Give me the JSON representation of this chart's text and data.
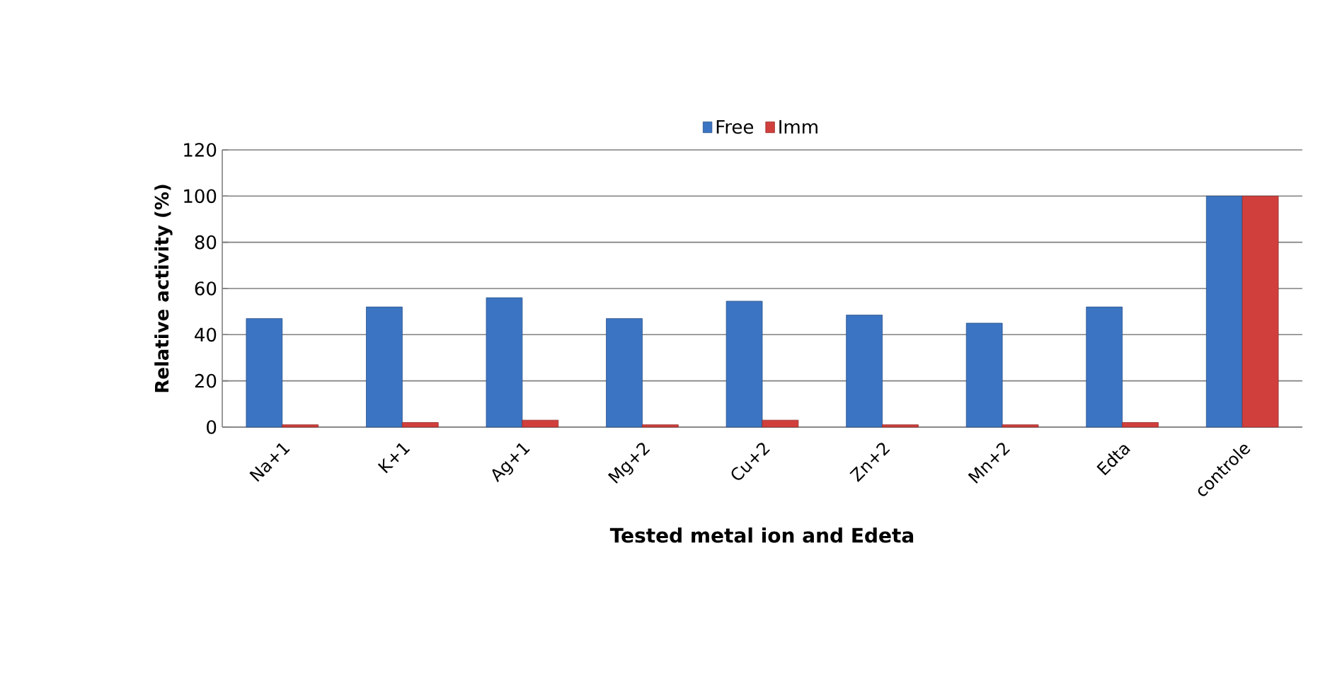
{
  "chart_data": {
    "type": "bar",
    "xlabel": "Tested  metal ion  and Edeta",
    "ylabel": "Relative activity (%)",
    "categories": [
      "Na+1",
      "K+1",
      "Ag+1",
      "Mg+2",
      "Cu+2",
      "Zn+2",
      "Mn+2",
      "Edta",
      "controle"
    ],
    "series": [
      {
        "name": "Free",
        "color": "#3b74c2",
        "values": [
          47,
          52,
          56,
          47,
          54.5,
          48.5,
          45,
          52,
          100
        ]
      },
      {
        "name": "Imm",
        "color": "#d13f3c",
        "values": [
          1,
          2,
          3,
          1,
          3,
          1,
          1,
          2,
          100
        ]
      }
    ],
    "ylim": [
      0,
      120
    ],
    "yticks": [
      0,
      20,
      40,
      60,
      80,
      100,
      120
    ],
    "grid": "y",
    "legend": "top"
  }
}
